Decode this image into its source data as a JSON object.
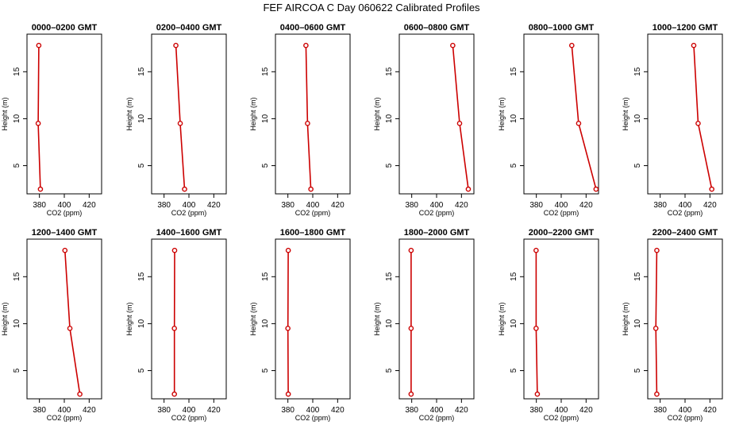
{
  "figure": {
    "title": "FEF  AIRCOA C  Day 060622  Calibrated Profiles"
  },
  "chart_data": [
    {
      "type": "line",
      "title": "0000–0200 GMT",
      "xlabel": "CO2 (ppm)",
      "ylabel": "Height (m)",
      "xlim": [
        370,
        430
      ],
      "ylim": [
        2,
        19
      ],
      "xticks": [
        380,
        400,
        420
      ],
      "yticks": [
        5,
        10,
        15
      ],
      "series": [
        {
          "x": [
            379.5,
            379.0,
            380.8
          ],
          "y": [
            17.8,
            9.5,
            2.5
          ],
          "color": "#cc0000"
        }
      ]
    },
    {
      "type": "line",
      "title": "0200–0400 GMT",
      "xlabel": "CO2 (ppm)",
      "ylabel": "Height (m)",
      "xlim": [
        370,
        430
      ],
      "ylim": [
        2,
        19
      ],
      "xticks": [
        380,
        400,
        420
      ],
      "yticks": [
        5,
        10,
        15
      ],
      "series": [
        {
          "x": [
            389.5,
            393.0,
            396.5
          ],
          "y": [
            17.8,
            9.5,
            2.5
          ],
          "color": "#cc0000"
        }
      ]
    },
    {
      "type": "line",
      "title": "0400–0600 GMT",
      "xlabel": "CO2 (ppm)",
      "ylabel": "Height (m)",
      "xlim": [
        370,
        430
      ],
      "ylim": [
        2,
        19
      ],
      "xticks": [
        380,
        400,
        420
      ],
      "yticks": [
        5,
        10,
        15
      ],
      "series": [
        {
          "x": [
            394.5,
            395.8,
            398.5
          ],
          "y": [
            17.8,
            9.5,
            2.5
          ],
          "color": "#cc0000"
        }
      ]
    },
    {
      "type": "line",
      "title": "0600–0800 GMT",
      "xlabel": "CO2 (ppm)",
      "ylabel": "Height (m)",
      "xlim": [
        370,
        430
      ],
      "ylim": [
        2,
        19
      ],
      "xticks": [
        380,
        400,
        420
      ],
      "yticks": [
        5,
        10,
        15
      ],
      "series": [
        {
          "x": [
            413.0,
            418.5,
            425.5
          ],
          "y": [
            17.8,
            9.5,
            2.5
          ],
          "color": "#cc0000"
        }
      ]
    },
    {
      "type": "line",
      "title": "0800–1000 GMT",
      "xlabel": "CO2 (ppm)",
      "ylabel": "Height (m)",
      "xlim": [
        370,
        430
      ],
      "ylim": [
        2,
        19
      ],
      "xticks": [
        380,
        400,
        420
      ],
      "yticks": [
        5,
        10,
        15
      ],
      "series": [
        {
          "x": [
            408.5,
            414.0,
            428.0
          ],
          "y": [
            17.8,
            9.5,
            2.5
          ],
          "color": "#cc0000"
        }
      ]
    },
    {
      "type": "line",
      "title": "1000–1200 GMT",
      "xlabel": "CO2 (ppm)",
      "ylabel": "Height (m)",
      "xlim": [
        370,
        430
      ],
      "ylim": [
        2,
        19
      ],
      "xticks": [
        380,
        400,
        420
      ],
      "yticks": [
        5,
        10,
        15
      ],
      "series": [
        {
          "x": [
            407.0,
            410.5,
            421.5
          ],
          "y": [
            17.8,
            9.5,
            2.5
          ],
          "color": "#cc0000"
        }
      ]
    },
    {
      "type": "line",
      "title": "1200–1400 GMT",
      "xlabel": "CO2 (ppm)",
      "ylabel": "Height (m)",
      "xlim": [
        370,
        430
      ],
      "ylim": [
        2,
        19
      ],
      "xticks": [
        380,
        400,
        420
      ],
      "yticks": [
        5,
        10,
        15
      ],
      "series": [
        {
          "x": [
            400.5,
            404.5,
            412.5
          ],
          "y": [
            17.8,
            9.5,
            2.5
          ],
          "color": "#cc0000"
        }
      ]
    },
    {
      "type": "line",
      "title": "1400–1600 GMT",
      "xlabel": "CO2 (ppm)",
      "ylabel": "Height (m)",
      "xlim": [
        370,
        430
      ],
      "ylim": [
        2,
        19
      ],
      "xticks": [
        380,
        400,
        420
      ],
      "yticks": [
        5,
        10,
        15
      ],
      "series": [
        {
          "x": [
            388.5,
            388.3,
            388.3
          ],
          "y": [
            17.8,
            9.5,
            2.5
          ],
          "color": "#cc0000"
        }
      ]
    },
    {
      "type": "line",
      "title": "1600–1800 GMT",
      "xlabel": "CO2 (ppm)",
      "ylabel": "Height (m)",
      "xlim": [
        370,
        430
      ],
      "ylim": [
        2,
        19
      ],
      "xticks": [
        380,
        400,
        420
      ],
      "yticks": [
        5,
        10,
        15
      ],
      "series": [
        {
          "x": [
            380.3,
            380.0,
            380.3
          ],
          "y": [
            17.8,
            9.5,
            2.5
          ],
          "color": "#cc0000"
        }
      ]
    },
    {
      "type": "line",
      "title": "1800–2000 GMT",
      "xlabel": "CO2 (ppm)",
      "ylabel": "Height (m)",
      "xlim": [
        370,
        430
      ],
      "ylim": [
        2,
        19
      ],
      "xticks": [
        380,
        400,
        420
      ],
      "yticks": [
        5,
        10,
        15
      ],
      "series": [
        {
          "x": [
            379.5,
            379.5,
            379.5
          ],
          "y": [
            17.8,
            9.5,
            2.5
          ],
          "color": "#cc0000"
        }
      ]
    },
    {
      "type": "line",
      "title": "2000–2200 GMT",
      "xlabel": "CO2 (ppm)",
      "ylabel": "Height (m)",
      "xlim": [
        370,
        430
      ],
      "ylim": [
        2,
        19
      ],
      "xticks": [
        380,
        400,
        420
      ],
      "yticks": [
        5,
        10,
        15
      ],
      "series": [
        {
          "x": [
            379.8,
            379.8,
            380.8
          ],
          "y": [
            17.8,
            9.5,
            2.5
          ],
          "color": "#cc0000"
        }
      ]
    },
    {
      "type": "line",
      "title": "2200–2400 GMT",
      "xlabel": "CO2 (ppm)",
      "ylabel": "Height (m)",
      "xlim": [
        370,
        430
      ],
      "ylim": [
        2,
        19
      ],
      "xticks": [
        380,
        400,
        420
      ],
      "yticks": [
        5,
        10,
        15
      ],
      "series": [
        {
          "x": [
            377.3,
            376.5,
            377.3
          ],
          "y": [
            17.8,
            9.5,
            2.5
          ],
          "color": "#cc0000"
        }
      ]
    }
  ]
}
